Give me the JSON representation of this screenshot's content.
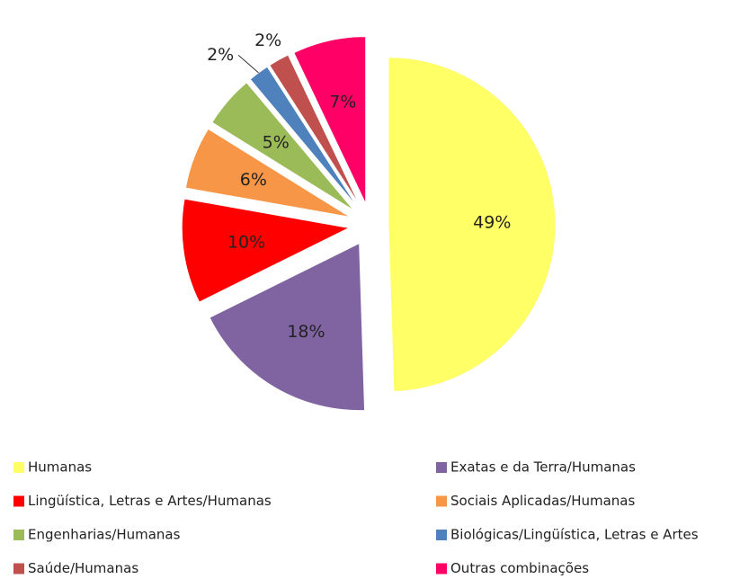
{
  "chart_data": {
    "type": "pie",
    "categories": [
      "Humanas",
      "Exatas e da Terra/Humanas",
      "Lingüística, Letras e Artes/Humanas",
      "Sociais Aplicadas/Humanas",
      "Engenharias/Humanas",
      "Biológicas/Lingüística, Letras e Artes",
      "Saúde/Humanas",
      "Outras combinações"
    ],
    "values": [
      49,
      18,
      10,
      6,
      5,
      2,
      2,
      7
    ],
    "value_labels": [
      "49%",
      "18%",
      "10%",
      "6%",
      "5%",
      "2%",
      "2%",
      "7%"
    ],
    "colors": [
      "#ffff66",
      "#8064a2",
      "#ff0000",
      "#f79646",
      "#9bbb59",
      "#4f81bd",
      "#c0504d",
      "#ff0066"
    ],
    "legend": "bottom"
  }
}
